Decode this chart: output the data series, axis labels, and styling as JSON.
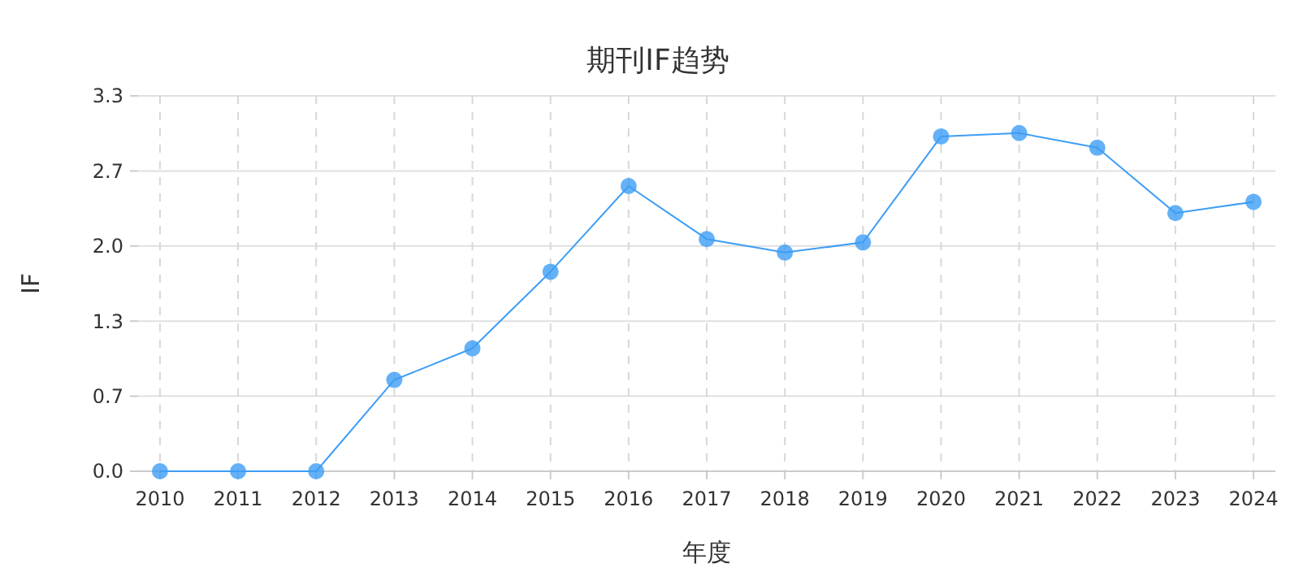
{
  "chart_data": {
    "type": "line",
    "title": "期刊IF趋势",
    "xlabel": "年度",
    "ylabel": "IF",
    "categories": [
      "2010",
      "2011",
      "2012",
      "2013",
      "2014",
      "2015",
      "2016",
      "2017",
      "2018",
      "2019",
      "2020",
      "2021",
      "2022",
      "2023",
      "2024"
    ],
    "series": [
      {
        "color": "#3d9df5",
        "values": [
          0,
          0,
          0,
          0.81,
          1.09,
          1.77,
          2.53,
          2.06,
          1.94,
          2.03,
          2.97,
          3.0,
          2.87,
          2.29,
          2.39
        ]
      }
    ],
    "ylim": [
      0,
      3.33
    ],
    "yticks": [
      {
        "value": 0,
        "label": "0.0"
      },
      {
        "value": 0.666,
        "label": "0.7"
      },
      {
        "value": 1.332,
        "label": "1.3"
      },
      {
        "value": 1.998,
        "label": "2.0"
      },
      {
        "value": 2.664,
        "label": "2.7"
      },
      {
        "value": 3.33,
        "label": "3.3"
      }
    ],
    "grid": true,
    "marker": "circle",
    "line_style": "solid"
  }
}
